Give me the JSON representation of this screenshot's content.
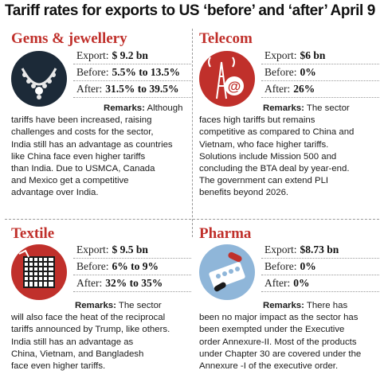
{
  "title": "Tariff rates for exports to US ‘before’ and ‘after’ April 9",
  "sectors": [
    {
      "name": "Gems & jewellery",
      "export_label": "Export:",
      "export": "$ 9.2 bn",
      "before_label": "Before:",
      "before": "5.5% to 13.5%",
      "after_label": "After:",
      "after": "31.5% to 39.5%",
      "remarks_label": "Remarks:",
      "remarks_lines": [
        "Although",
        "tariffs have been increased, raising",
        "challenges and costs for the sector,",
        "India still has an advantage as countries",
        "like China face even higher tariffs",
        "than India.  Due to USMCA, Canada",
        "and Mexico get a competitive",
        "advantage over India."
      ],
      "icon": "necklace-icon"
    },
    {
      "name": "Telecom",
      "export_label": "Export:",
      "export": "$6 bn",
      "before_label": "Before:",
      "before": "0%",
      "after_label": "After:",
      "after": "26%",
      "remarks_label": "Remarks:",
      "remarks_lines": [
        "The sector",
        "faces high tariffs but remains",
        "competitive as compared to China and",
        "Vietnam, who face higher tariffs.",
        "Solutions include Mission 500 and",
        "concluding the BTA deal by year-end.",
        "The government can extend PLI",
        "benefits beyond 2026."
      ],
      "icon": "telecom-tower-icon"
    },
    {
      "name": "Textile",
      "export_label": "Export:",
      "export": "$ 9.5 bn",
      "before_label": "Before:",
      "before": "6% to 9%",
      "after_label": "After:",
      "after": "32% to 35%",
      "remarks_label": "Remarks:",
      "remarks_lines": [
        "The sector",
        "will also face the heat of the reciprocal",
        "tariffs announced by Trump, like others.",
        "India still has an advantage as",
        "China, Vietnam, and Bangladesh",
        "face even higher tariffs."
      ],
      "icon": "fabric-icon"
    },
    {
      "name": "Pharma",
      "export_label": "Export:",
      "export": "$8.73 bn",
      "before_label": "Before:",
      "before": "0%",
      "after_label": "After:",
      "after": "0%",
      "remarks_label": "Remarks:",
      "remarks_lines": [
        "There has",
        "been no major impact as the sector has",
        "been exempted under the Executive",
        "order Annexure-II. Most of the products",
        "under Chapter 30 are covered under the",
        "Annexure -I of the executive order."
      ],
      "icon": "pills-icon"
    }
  ],
  "colors": {
    "heading": "#c0302b",
    "icon_bg_dark": "#1c2a38",
    "icon_bg_red": "#c0302b",
    "icon_bg_blue": "#8fb6d9"
  }
}
